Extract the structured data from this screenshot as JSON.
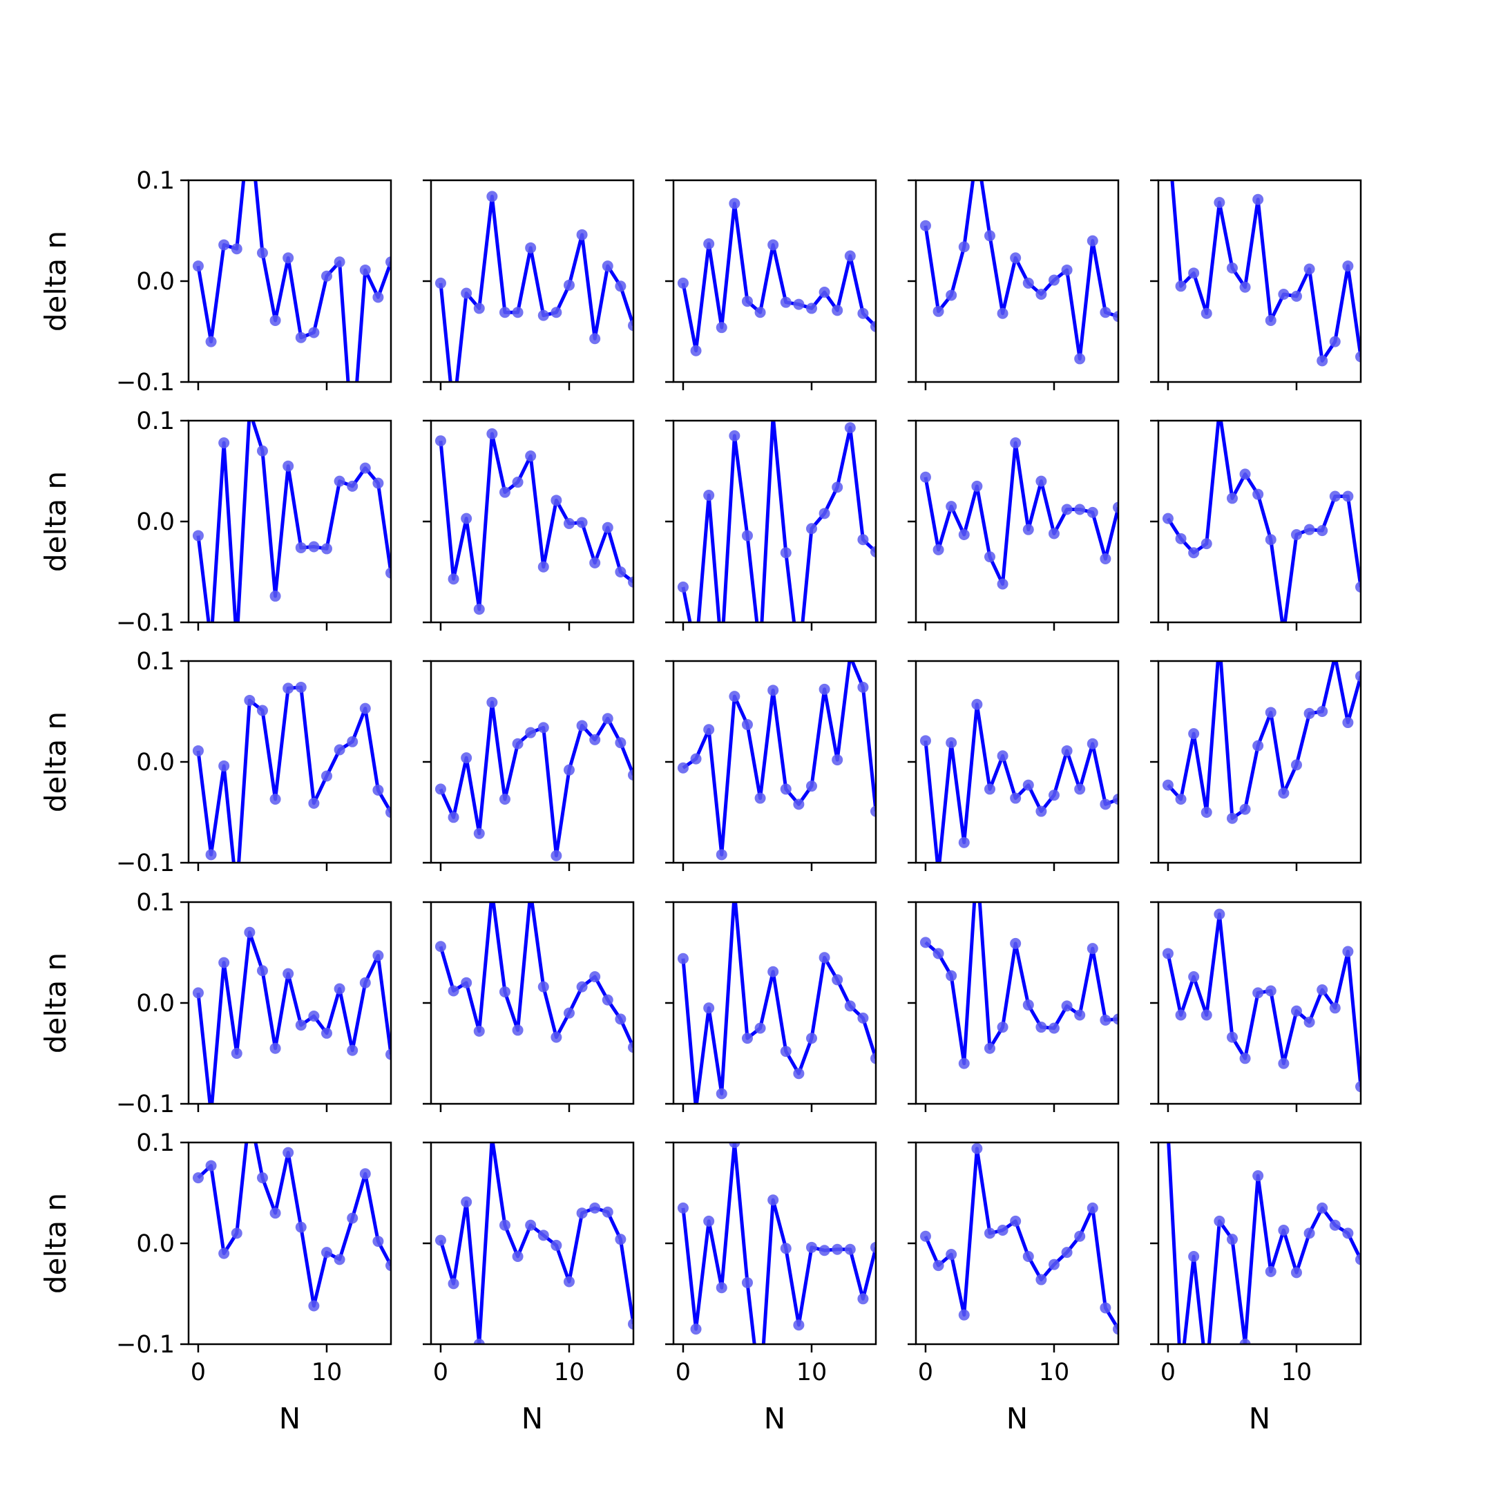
{
  "chart_data": {
    "type": "line",
    "layout": {
      "rows": 5,
      "cols": 5,
      "sharex": true,
      "sharey": true
    },
    "xlabel": "N",
    "ylabel": "delta n",
    "xlim": [
      -0.75,
      15.0
    ],
    "ylim": [
      -0.1,
      0.1
    ],
    "x_ticks": [
      0,
      10
    ],
    "x_tick_labels": [
      "0",
      "10"
    ],
    "y_ticks": [
      -0.1,
      0.0,
      0.1
    ],
    "y_tick_labels": [
      "−0.1",
      "0.0",
      "0.1"
    ],
    "x": [
      0,
      1,
      2,
      3,
      4,
      5,
      6,
      7,
      8,
      9,
      10,
      11,
      12,
      13,
      14,
      15
    ],
    "colors": {
      "line": "#0000ff",
      "marker": "#5b5bf0"
    },
    "subplots": [
      [
        0.015,
        -0.06,
        0.036,
        0.032,
        0.16,
        0.028,
        -0.039,
        0.023,
        -0.056,
        -0.051,
        0.005,
        0.019,
        -0.16,
        0.011,
        -0.016,
        0.019
      ],
      [
        -0.002,
        -0.13,
        -0.012,
        -0.027,
        0.084,
        -0.031,
        -0.031,
        0.033,
        -0.034,
        -0.031,
        -0.004,
        0.046,
        -0.057,
        0.015,
        -0.005,
        -0.044
      ],
      [
        -0.002,
        -0.069,
        0.037,
        -0.046,
        0.077,
        -0.02,
        -0.031,
        0.036,
        -0.021,
        -0.023,
        -0.027,
        -0.011,
        -0.029,
        0.025,
        -0.032,
        -0.045
      ],
      [
        0.055,
        -0.03,
        -0.014,
        0.034,
        0.13,
        0.045,
        -0.032,
        0.023,
        -0.002,
        -0.013,
        0.001,
        0.011,
        -0.077,
        0.04,
        -0.031,
        -0.035
      ],
      [
        0.15,
        -0.005,
        0.008,
        -0.032,
        0.078,
        0.013,
        -0.006,
        0.081,
        -0.039,
        -0.013,
        -0.015,
        0.012,
        -0.079,
        -0.06,
        0.015,
        -0.075
      ],
      [
        -0.014,
        -0.12,
        0.078,
        -0.12,
        0.11,
        0.07,
        -0.074,
        0.055,
        -0.026,
        -0.025,
        -0.027,
        0.04,
        0.035,
        0.053,
        0.038,
        -0.051
      ],
      [
        0.08,
        -0.057,
        0.003,
        -0.087,
        0.087,
        0.029,
        0.039,
        0.065,
        -0.045,
        0.021,
        -0.002,
        -0.001,
        -0.041,
        -0.006,
        -0.05,
        -0.06
      ],
      [
        -0.065,
        -0.13,
        0.026,
        -0.13,
        0.085,
        -0.014,
        -0.13,
        0.105,
        -0.031,
        -0.14,
        -0.007,
        0.008,
        0.034,
        0.093,
        -0.018,
        -0.03
      ],
      [
        0.044,
        -0.028,
        0.015,
        -0.013,
        0.035,
        -0.035,
        -0.062,
        0.078,
        -0.008,
        0.04,
        -0.012,
        0.012,
        0.012,
        0.009,
        -0.037,
        0.014
      ],
      [
        0.003,
        -0.017,
        -0.031,
        -0.022,
        0.11,
        0.023,
        0.047,
        0.027,
        -0.018,
        -0.11,
        -0.013,
        -0.008,
        -0.009,
        0.025,
        0.025,
        -0.065
      ],
      [
        0.011,
        -0.092,
        -0.004,
        -0.13,
        0.061,
        0.051,
        -0.037,
        0.073,
        0.074,
        -0.041,
        -0.014,
        0.012,
        0.02,
        0.053,
        -0.028,
        -0.05
      ],
      [
        -0.027,
        -0.055,
        0.004,
        -0.071,
        0.059,
        -0.037,
        0.018,
        0.029,
        0.034,
        -0.093,
        -0.008,
        0.036,
        0.022,
        0.043,
        0.019,
        -0.013
      ],
      [
        -0.006,
        0.003,
        0.032,
        -0.092,
        0.065,
        0.037,
        -0.036,
        0.071,
        -0.027,
        -0.042,
        -0.024,
        0.072,
        0.002,
        0.105,
        0.074,
        -0.049
      ],
      [
        0.021,
        -0.11,
        0.019,
        -0.08,
        0.057,
        -0.027,
        0.006,
        -0.036,
        -0.023,
        -0.049,
        -0.033,
        0.011,
        -0.027,
        0.018,
        -0.042,
        -0.037
      ],
      [
        -0.023,
        -0.037,
        0.028,
        -0.05,
        0.12,
        -0.056,
        -0.047,
        0.016,
        0.049,
        -0.031,
        -0.003,
        0.048,
        0.05,
        0.105,
        0.039,
        0.085
      ],
      [
        0.01,
        -0.11,
        0.04,
        -0.05,
        0.07,
        0.032,
        -0.045,
        0.029,
        -0.022,
        -0.013,
        -0.03,
        0.014,
        -0.047,
        0.02,
        0.047,
        -0.051
      ],
      [
        0.056,
        0.012,
        0.02,
        -0.028,
        0.11,
        0.011,
        -0.027,
        0.11,
        0.016,
        -0.034,
        -0.01,
        0.016,
        0.026,
        0.003,
        -0.016,
        -0.044
      ],
      [
        0.044,
        -0.105,
        -0.005,
        -0.09,
        0.11,
        -0.035,
        -0.025,
        0.031,
        -0.048,
        -0.07,
        -0.035,
        0.045,
        0.023,
        -0.003,
        -0.015,
        -0.055
      ],
      [
        0.06,
        0.049,
        0.027,
        -0.06,
        0.14,
        -0.045,
        -0.024,
        0.059,
        -0.002,
        -0.024,
        -0.025,
        -0.003,
        -0.012,
        0.054,
        -0.017,
        -0.016
      ],
      [
        0.049,
        -0.012,
        0.026,
        -0.012,
        0.088,
        -0.034,
        -0.055,
        0.01,
        0.012,
        -0.06,
        -0.008,
        -0.019,
        0.013,
        -0.005,
        0.051,
        -0.083
      ],
      [
        0.065,
        0.077,
        -0.01,
        0.01,
        0.13,
        0.065,
        0.03,
        0.09,
        0.016,
        -0.062,
        -0.009,
        -0.016,
        0.025,
        0.069,
        0.002,
        -0.022
      ],
      [
        0.003,
        -0.04,
        0.041,
        -0.1,
        0.105,
        0.018,
        -0.013,
        0.018,
        0.008,
        -0.002,
        -0.038,
        0.03,
        0.035,
        0.031,
        0.004,
        -0.08
      ],
      [
        0.035,
        -0.085,
        0.022,
        -0.044,
        0.1,
        -0.039,
        -0.15,
        0.043,
        -0.005,
        -0.081,
        -0.004,
        -0.007,
        -0.006,
        -0.006,
        -0.055,
        -0.004
      ],
      [
        0.007,
        -0.022,
        -0.011,
        -0.071,
        0.094,
        0.01,
        0.013,
        0.022,
        -0.013,
        -0.036,
        -0.021,
        -0.009,
        0.007,
        0.035,
        -0.064,
        -0.085
      ],
      [
        0.11,
        -0.13,
        -0.013,
        -0.13,
        0.022,
        0.004,
        -0.1,
        0.067,
        -0.028,
        0.013,
        -0.029,
        0.01,
        0.035,
        0.018,
        0.01,
        -0.016
      ]
    ]
  }
}
